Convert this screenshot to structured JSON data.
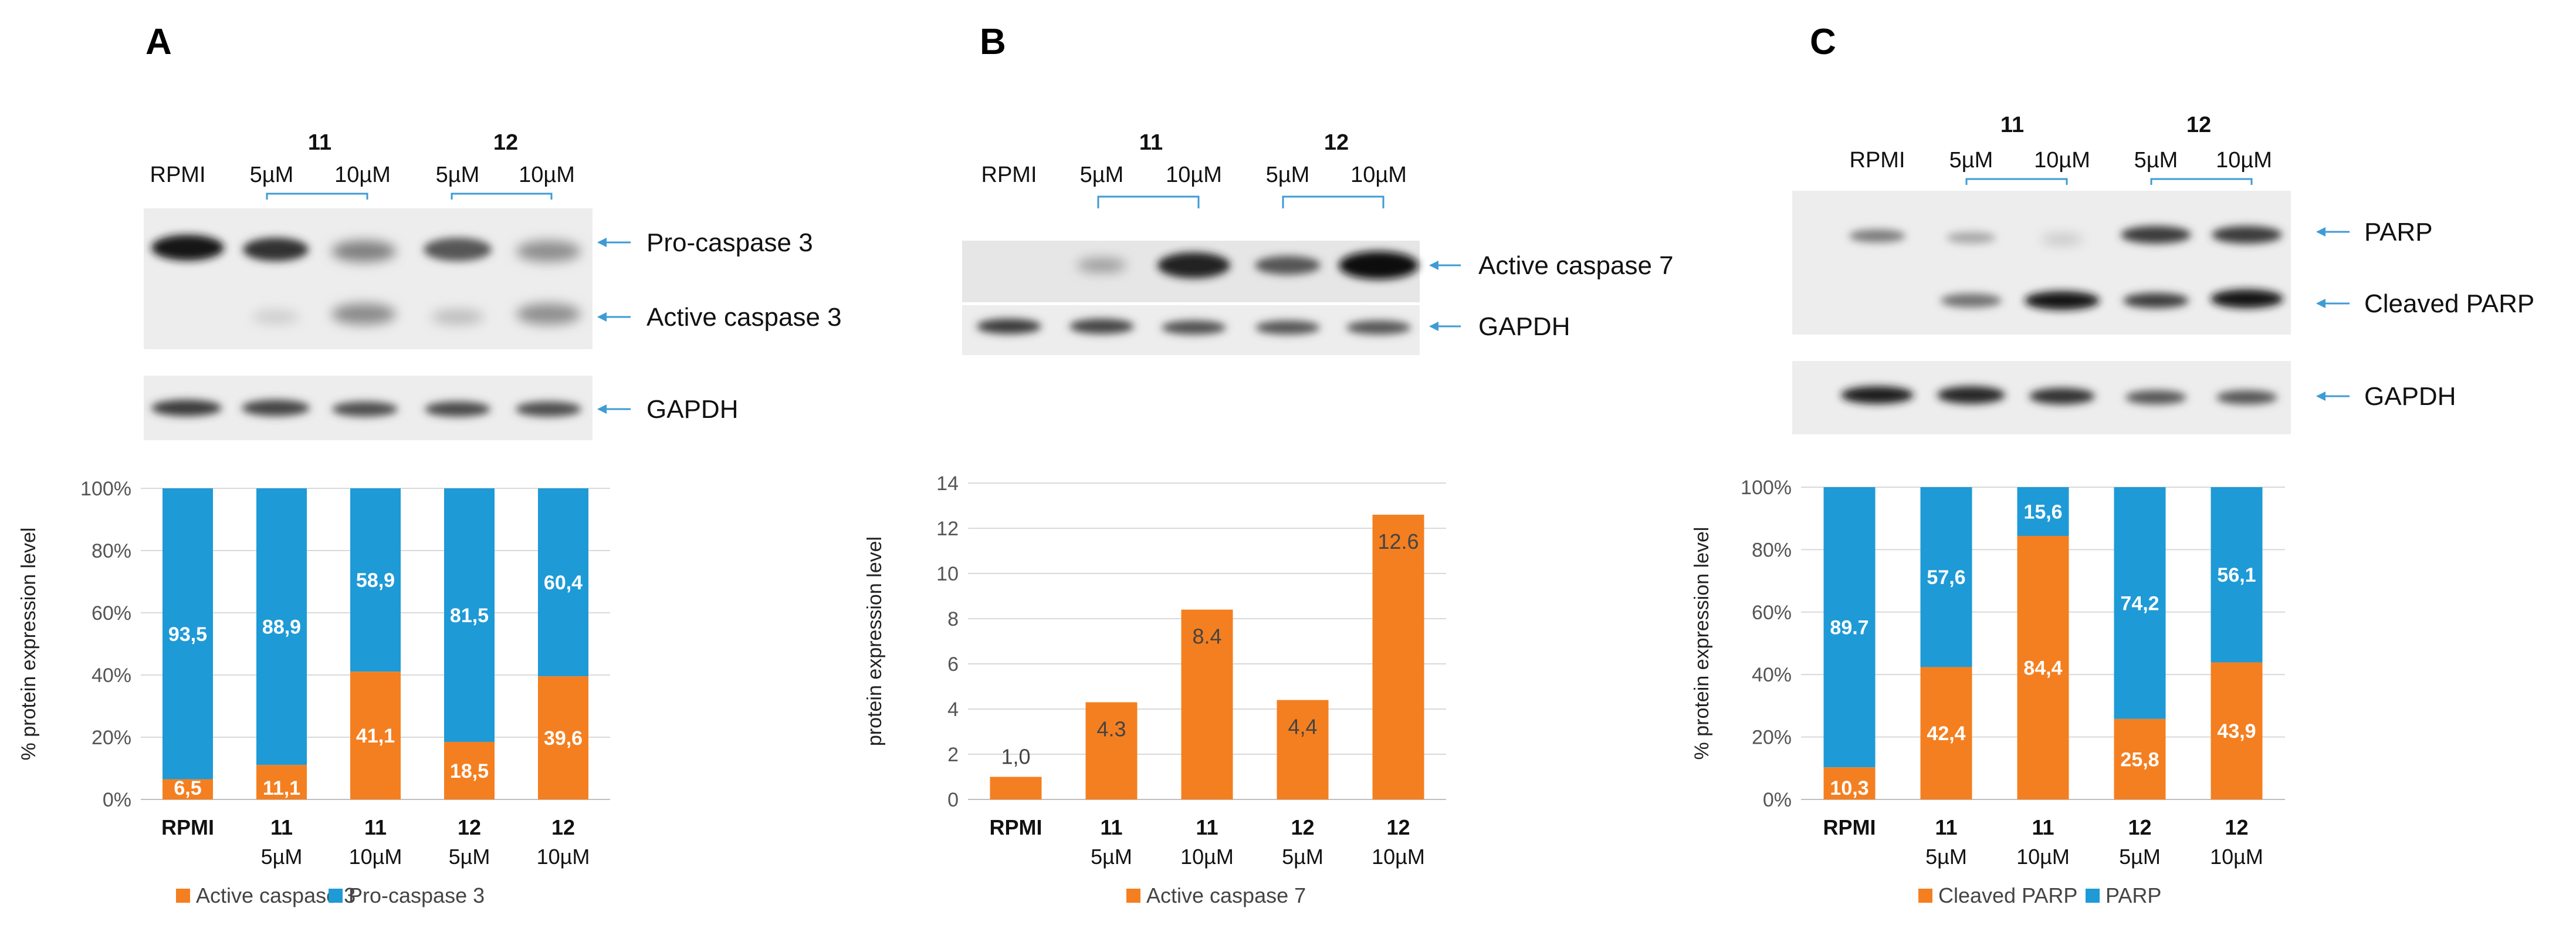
{
  "colors": {
    "orange": "#F47F20",
    "blue": "#1E9AD6",
    "arrow": "#3E9BD6",
    "grid": "#D9D9D9",
    "axis": "#BFBFBF"
  },
  "panels": [
    {
      "letter": "A",
      "blot": {
        "rpmi": "RPMI",
        "groups": [
          {
            "name": "11",
            "concs": [
              "5µM",
              "10µM"
            ]
          },
          {
            "name": "12",
            "concs": [
              "5µM",
              "10µM"
            ]
          }
        ],
        "bands": [
          "Pro-caspase 3",
          "Active caspase 3",
          "GAPDH"
        ]
      },
      "chart": {
        "type": "bar",
        "stacked": true,
        "percent": true,
        "ylabel": "% protein expression level",
        "yticks": [
          "0%",
          "20%",
          "40%",
          "60%",
          "80%",
          "100%"
        ],
        "ylim": [
          0,
          100
        ],
        "categories": [
          {
            "top": "RPMI",
            "bottom": ""
          },
          {
            "top": "11",
            "bottom": "5µM"
          },
          {
            "top": "11",
            "bottom": "10µM"
          },
          {
            "top": "12",
            "bottom": "5µM"
          },
          {
            "top": "12",
            "bottom": "10µM"
          }
        ],
        "series": [
          {
            "name": "Active caspase 3",
            "color": "#F47F20",
            "values": [
              6.5,
              11.1,
              41.1,
              18.5,
              39.6
            ],
            "labels": [
              "6,5",
              "11,1",
              "41,1",
              "18,5",
              "39,6"
            ]
          },
          {
            "name": "Pro-caspase 3",
            "color": "#1E9AD6",
            "values": [
              93.5,
              88.9,
              58.9,
              81.5,
              60.4
            ],
            "labels": [
              "93,5",
              "88,9",
              "58,9",
              "81,5",
              "60,4"
            ]
          }
        ],
        "legend": [
          "Active caspase 3",
          "Pro-caspase 3"
        ]
      }
    },
    {
      "letter": "B",
      "blot": {
        "rpmi": "RPMI",
        "groups": [
          {
            "name": "11",
            "concs": [
              "5µM",
              "10µM"
            ]
          },
          {
            "name": "12",
            "concs": [
              "5µM",
              "10µM"
            ]
          }
        ],
        "bands": [
          "Active caspase 7",
          "GAPDH"
        ]
      },
      "chart": {
        "type": "bar",
        "stacked": false,
        "ylabel": "protein expression level",
        "yticks": [
          "0",
          "2",
          "4",
          "6",
          "8",
          "10",
          "12",
          "14"
        ],
        "ylim": [
          0,
          14
        ],
        "categories": [
          {
            "top": "RPMI",
            "bottom": ""
          },
          {
            "top": "11",
            "bottom": "5µM"
          },
          {
            "top": "11",
            "bottom": "10µM"
          },
          {
            "top": "12",
            "bottom": "5µM"
          },
          {
            "top": "12",
            "bottom": "10µM"
          }
        ],
        "series": [
          {
            "name": "Active caspase 7",
            "color": "#F47F20",
            "values": [
              1.0,
              4.3,
              8.4,
              4.4,
              12.6
            ],
            "labels": [
              "1,0",
              "4.3",
              "8.4",
              "4,4",
              "12.6"
            ]
          }
        ],
        "legend": [
          "Active caspase 7"
        ]
      }
    },
    {
      "letter": "C",
      "blot": {
        "rpmi": "RPMI",
        "groups": [
          {
            "name": "11",
            "concs": [
              "5µM",
              "10µM"
            ]
          },
          {
            "name": "12",
            "concs": [
              "5µM",
              "10µM"
            ]
          }
        ],
        "bands": [
          "PARP",
          "Cleaved PARP",
          "GAPDH"
        ]
      },
      "chart": {
        "type": "bar",
        "stacked": true,
        "percent": true,
        "ylabel": "% protein expression level",
        "yticks": [
          "0%",
          "20%",
          "40%",
          "60%",
          "80%",
          "100%"
        ],
        "ylim": [
          0,
          100
        ],
        "categories": [
          {
            "top": "RPMI",
            "bottom": ""
          },
          {
            "top": "11",
            "bottom": "5µM"
          },
          {
            "top": "11",
            "bottom": "10µM"
          },
          {
            "top": "12",
            "bottom": "5µM"
          },
          {
            "top": "12",
            "bottom": "10µM"
          }
        ],
        "series": [
          {
            "name": "Cleaved PARP",
            "color": "#F47F20",
            "values": [
              10.3,
              42.4,
              84.4,
              25.8,
              43.9
            ],
            "labels": [
              "10,3",
              "42,4",
              "84,4",
              "25,8",
              "43,9"
            ]
          },
          {
            "name": "PARP",
            "color": "#1E9AD6",
            "values": [
              89.7,
              57.6,
              15.6,
              74.2,
              56.1
            ],
            "labels": [
              "89.7",
              "57,6",
              "15,6",
              "74,2",
              "56,1"
            ]
          }
        ],
        "legend": [
          "Cleaved PARP",
          "PARP"
        ]
      }
    }
  ]
}
